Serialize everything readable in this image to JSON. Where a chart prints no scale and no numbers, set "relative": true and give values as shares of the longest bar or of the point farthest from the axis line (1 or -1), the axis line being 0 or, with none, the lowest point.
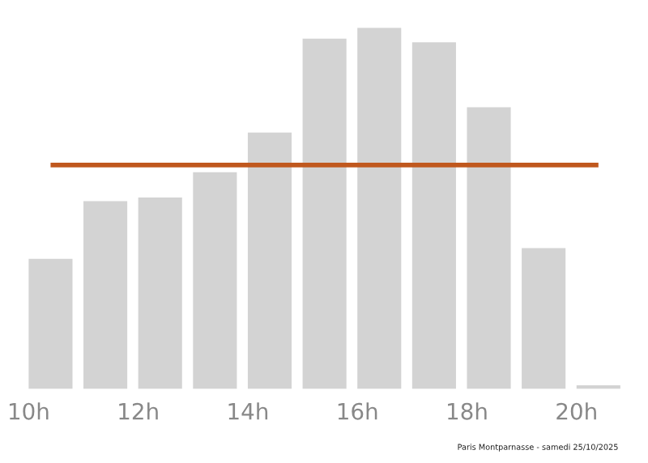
{
  "chart_data": {
    "type": "bar",
    "relative": true,
    "categories": [
      "10h",
      null,
      "12h",
      null,
      "14h",
      null,
      "16h",
      null,
      "18h",
      null,
      "20h"
    ],
    "values": [
      0.36,
      0.52,
      0.53,
      0.6,
      0.71,
      0.97,
      1,
      0.96,
      0.78,
      0.39,
      0.01
    ],
    "color": "#d3d3d3",
    "ref_lines": [
      {
        "axis": "y",
        "value": 0.62,
        "color": "#c0581e"
      }
    ],
    "annotations": [
      "Paris Montparnasse - samedi 25/10/2025"
    ],
    "grid": false,
    "legend": false
  }
}
